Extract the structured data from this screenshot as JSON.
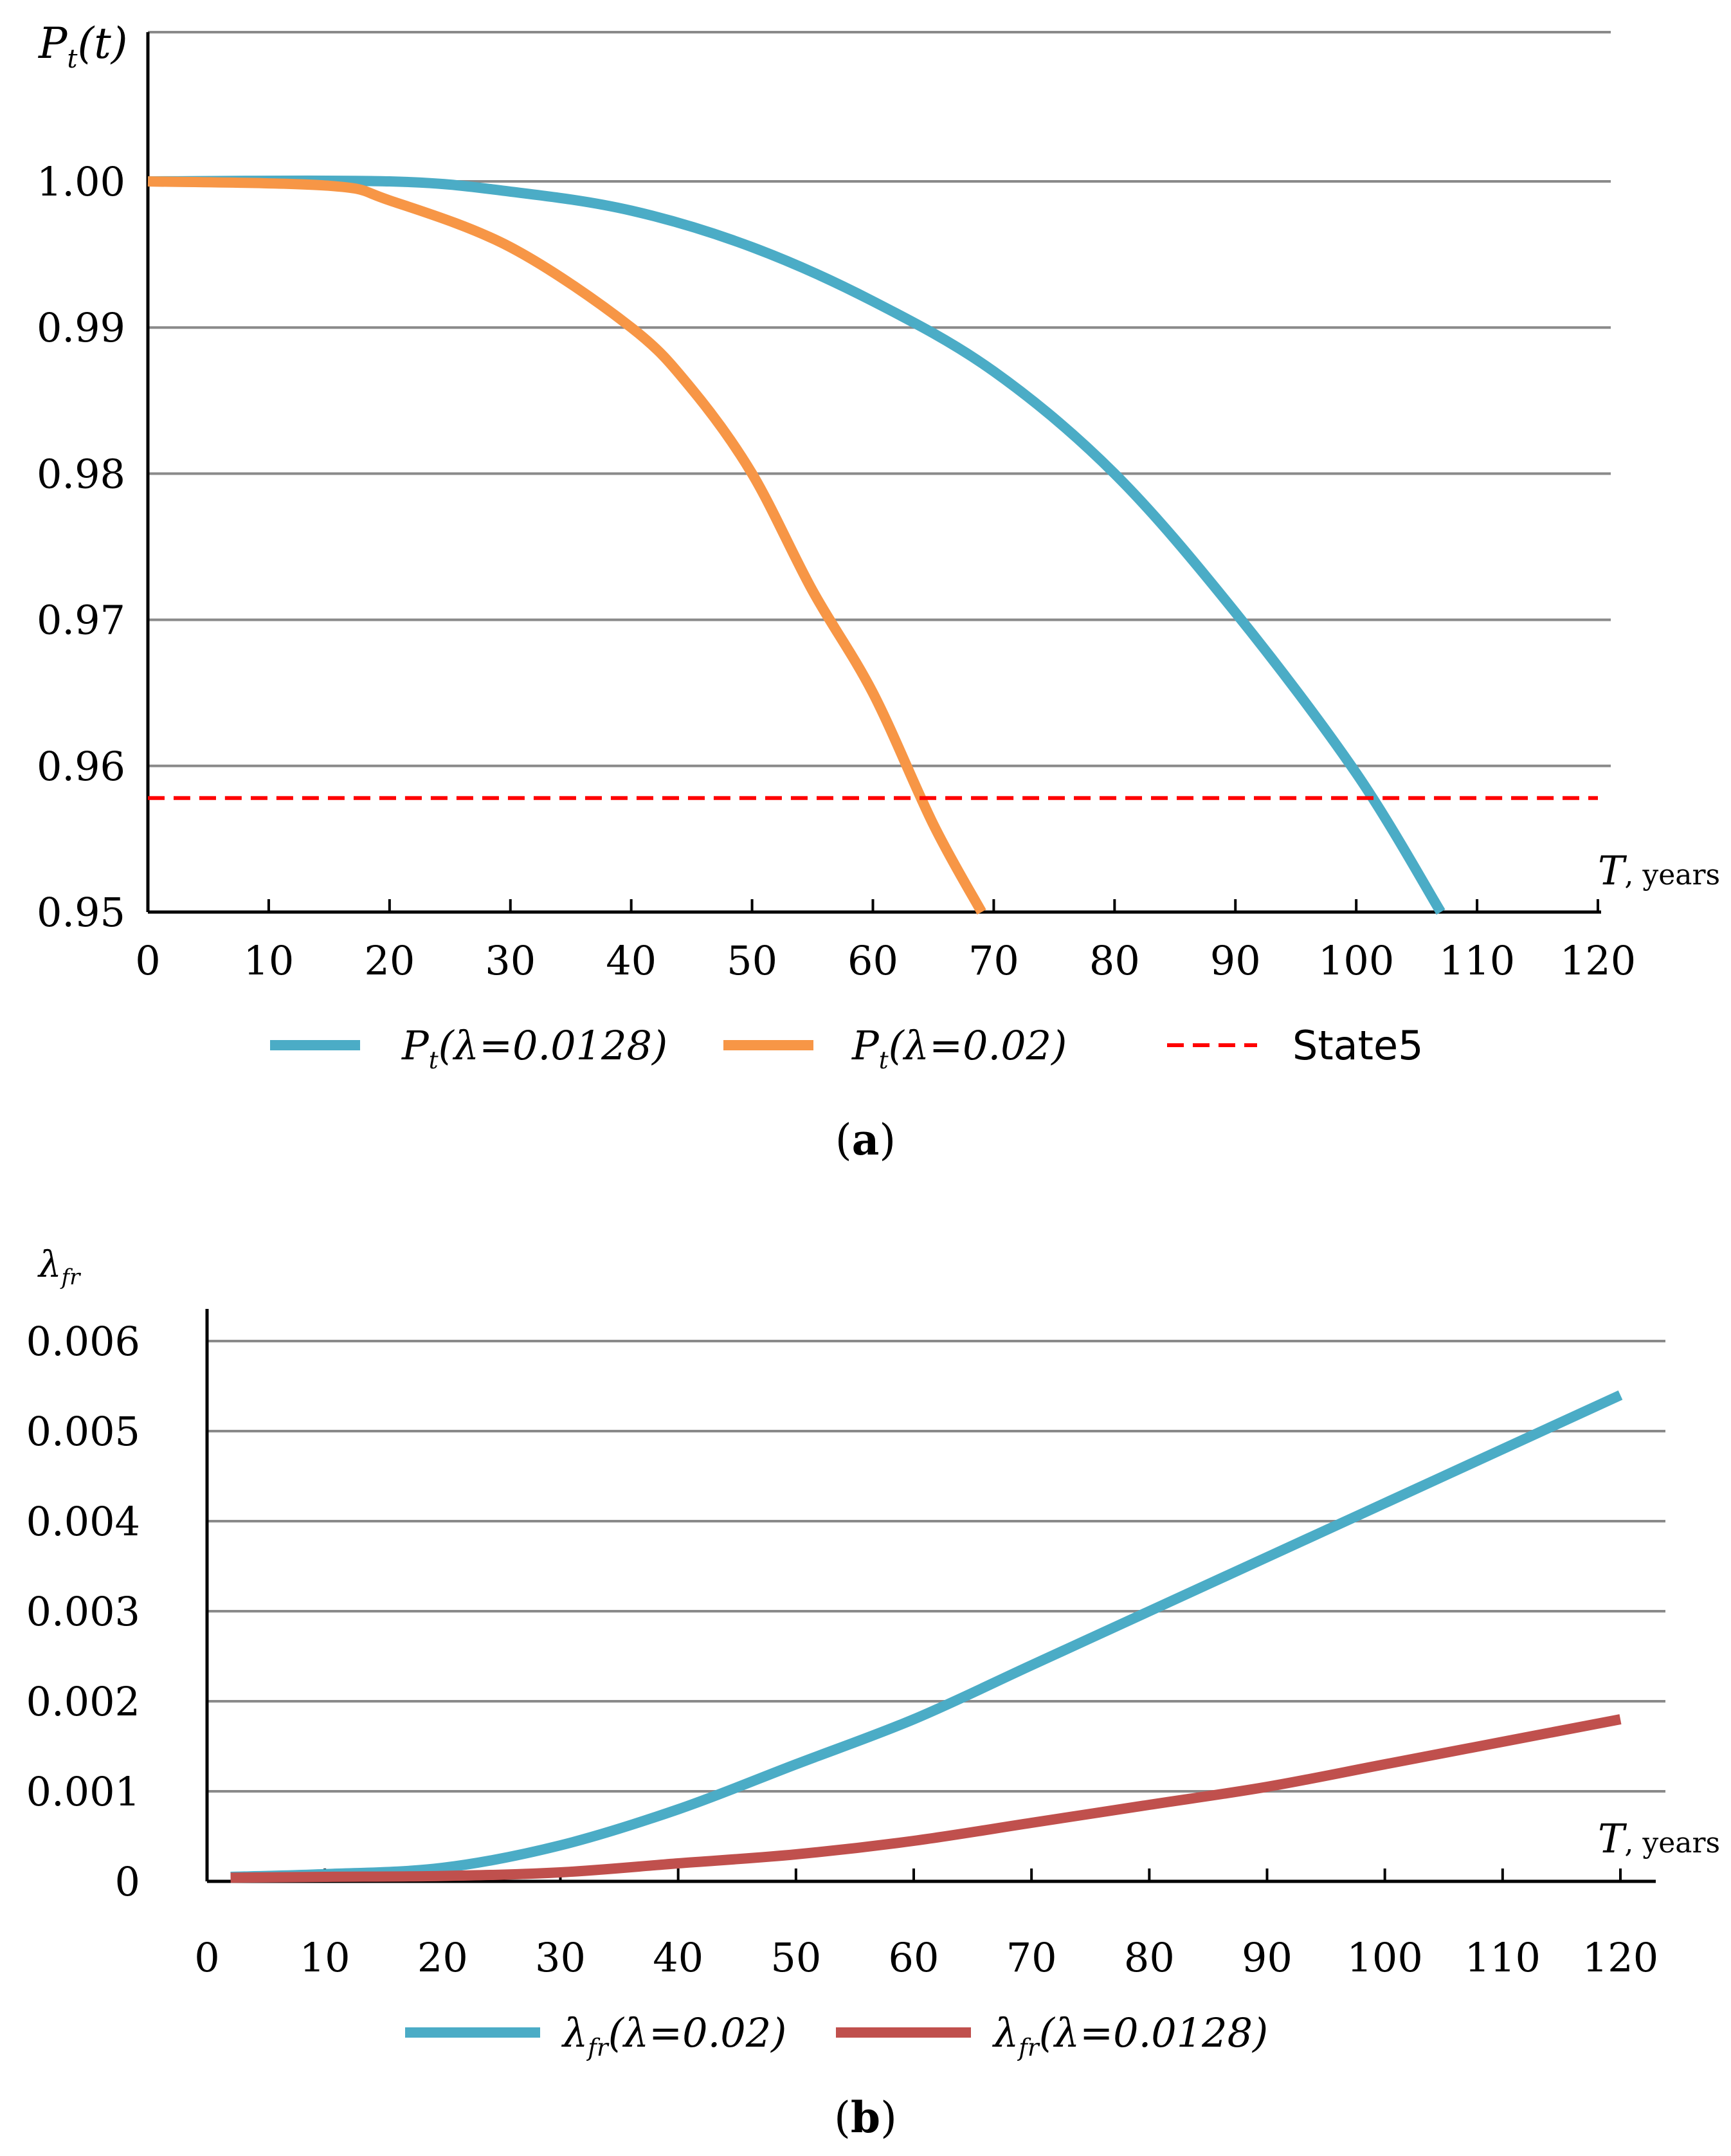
{
  "chart_data": [
    {
      "panel": "(a)",
      "type": "line",
      "ylabel": "Pt(t)",
      "xlabel": "T, years",
      "xlim": [
        0,
        120
      ],
      "ylim": [
        0.95,
        1.0
      ],
      "x_ticks": [
        0,
        10,
        20,
        30,
        40,
        50,
        60,
        70,
        80,
        90,
        100,
        110,
        120
      ],
      "y_ticks": [
        0.95,
        0.96,
        0.97,
        0.98,
        0.99,
        1.0
      ],
      "y_tick_labels": [
        "0.95",
        "0.96",
        "0.97",
        "0.98",
        "0.99",
        "1.00"
      ],
      "grid": "horizontal",
      "legend_position": "bottom",
      "series": [
        {
          "name": "Pt(λ=0.0128)",
          "color": "#4bacc6",
          "style": "solid",
          "points": [
            [
              0,
              1.0
            ],
            [
              20,
              1.0
            ],
            [
              30,
              0.9993
            ],
            [
              40,
              0.998
            ],
            [
              50,
              0.9955
            ],
            [
              60,
              0.9918
            ],
            [
              70,
              0.987
            ],
            [
              80,
              0.98
            ],
            [
              90,
              0.9705
            ],
            [
              100,
              0.9595
            ],
            [
              107,
              0.95
            ]
          ]
        },
        {
          "name": "Pt(λ=0.02)",
          "color": "#f79646",
          "style": "solid",
          "points": [
            [
              0,
              1.0
            ],
            [
              15,
              0.9997
            ],
            [
              20,
              0.9987
            ],
            [
              30,
              0.9955
            ],
            [
              40,
              0.99
            ],
            [
              45,
              0.9858
            ],
            [
              50,
              0.98
            ],
            [
              55,
              0.972
            ],
            [
              60,
              0.965
            ],
            [
              65,
              0.956
            ],
            [
              69,
              0.95
            ]
          ]
        },
        {
          "name": "State5",
          "color": "#ff0000",
          "style": "dashed",
          "points": [
            [
              0,
              0.9578
            ],
            [
              120,
              0.9578
            ]
          ]
        }
      ]
    },
    {
      "panel": "(b)",
      "type": "line",
      "ylabel": "λfr",
      "xlabel": "T, years",
      "xlim": [
        0,
        120
      ],
      "ylim": [
        0,
        0.006
      ],
      "x_ticks": [
        0,
        10,
        20,
        30,
        40,
        50,
        60,
        70,
        80,
        90,
        100,
        110,
        120
      ],
      "y_ticks": [
        0,
        0.001,
        0.002,
        0.003,
        0.004,
        0.005,
        0.006
      ],
      "y_tick_labels": [
        "0",
        "0.001",
        "0.002",
        "0.003",
        "0.004",
        "0.005",
        "0.006"
      ],
      "grid": "horizontal",
      "legend_position": "bottom",
      "series": [
        {
          "name": "λfr(λ=0.02)",
          "color": "#4bacc6",
          "style": "solid",
          "points": [
            [
              2,
              5e-05
            ],
            [
              10,
              8e-05
            ],
            [
              20,
              0.00015
            ],
            [
              30,
              0.0004
            ],
            [
              40,
              0.0008
            ],
            [
              50,
              0.0013
            ],
            [
              60,
              0.0018
            ],
            [
              70,
              0.0024
            ],
            [
              80,
              0.003
            ],
            [
              90,
              0.0036
            ],
            [
              100,
              0.0042
            ],
            [
              110,
              0.0048
            ],
            [
              120,
              0.0054
            ]
          ]
        },
        {
          "name": "λfr(λ=0.0128)",
          "color": "#c0504d",
          "style": "solid",
          "points": [
            [
              2,
              4e-05
            ],
            [
              10,
              5e-05
            ],
            [
              20,
              6e-05
            ],
            [
              30,
              0.0001
            ],
            [
              40,
              0.0002
            ],
            [
              50,
              0.0003
            ],
            [
              60,
              0.00045
            ],
            [
              70,
              0.00065
            ],
            [
              80,
              0.00085
            ],
            [
              90,
              0.00105
            ],
            [
              100,
              0.0013
            ],
            [
              110,
              0.00155
            ],
            [
              120,
              0.0018
            ]
          ]
        }
      ]
    }
  ]
}
